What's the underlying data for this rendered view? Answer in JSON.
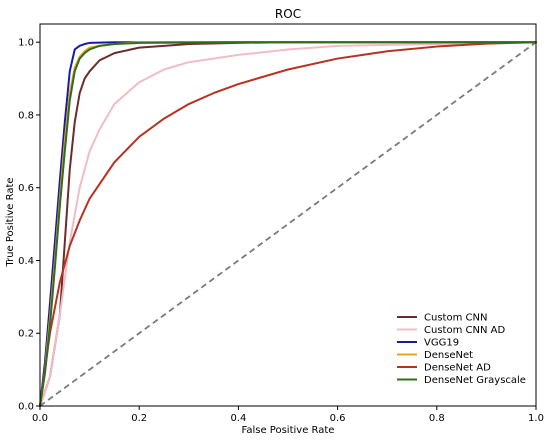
{
  "chart_data": {
    "type": "line",
    "title": "ROC",
    "xlabel": "False Positive Rate",
    "ylabel": "True Positive Rate",
    "xlim": [
      0,
      1
    ],
    "ylim": [
      0,
      1.05
    ],
    "xticks": [
      0.0,
      0.2,
      0.4,
      0.6,
      0.8,
      1.0
    ],
    "xtick_labels": [
      "0.0",
      "0.2",
      "0.4",
      "0.6",
      "0.8",
      "1.0"
    ],
    "yticks": [
      0.0,
      0.2,
      0.4,
      0.6,
      0.8,
      1.0
    ],
    "ytick_labels": [
      "0.0",
      "0.2",
      "0.4",
      "0.6",
      "0.8",
      "1.0"
    ],
    "grid": false,
    "legend_position": "lower-right",
    "series": [
      {
        "name": "Custom CNN",
        "color": "#6b2c2c",
        "x": [
          0,
          0.02,
          0.04,
          0.05,
          0.06,
          0.07,
          0.08,
          0.09,
          0.1,
          0.12,
          0.15,
          0.2,
          0.25,
          0.3,
          0.4,
          0.5,
          0.7,
          1.0
        ],
        "y": [
          0,
          0.08,
          0.25,
          0.45,
          0.65,
          0.78,
          0.86,
          0.9,
          0.92,
          0.95,
          0.97,
          0.985,
          0.99,
          0.995,
          0.998,
          1.0,
          1.0,
          1.0
        ]
      },
      {
        "name": "Custom CNN AD",
        "color": "#f2bcc4",
        "x": [
          0,
          0.02,
          0.04,
          0.06,
          0.08,
          0.1,
          0.12,
          0.15,
          0.2,
          0.25,
          0.3,
          0.4,
          0.5,
          0.6,
          0.8,
          1.0
        ],
        "y": [
          0,
          0.08,
          0.25,
          0.45,
          0.6,
          0.7,
          0.76,
          0.83,
          0.89,
          0.925,
          0.945,
          0.965,
          0.98,
          0.99,
          0.995,
          1.0
        ]
      },
      {
        "name": "VGG19",
        "color": "#1a1aa8",
        "x": [
          0,
          0.01,
          0.02,
          0.03,
          0.04,
          0.05,
          0.06,
          0.07,
          0.08,
          0.09,
          0.1,
          0.15,
          0.2,
          0.4,
          1.0
        ],
        "y": [
          0,
          0.12,
          0.28,
          0.45,
          0.62,
          0.78,
          0.92,
          0.98,
          0.99,
          0.995,
          0.998,
          1.0,
          1.0,
          1.0,
          1.0
        ]
      },
      {
        "name": "DenseNet",
        "color": "#f0a020",
        "x": [
          0,
          0.01,
          0.02,
          0.03,
          0.04,
          0.05,
          0.06,
          0.07,
          0.08,
          0.09,
          0.1,
          0.12,
          0.15,
          0.2,
          0.4,
          1.0
        ],
        "y": [
          0,
          0.1,
          0.24,
          0.4,
          0.57,
          0.73,
          0.86,
          0.93,
          0.96,
          0.975,
          0.985,
          0.99,
          0.995,
          1.0,
          1.0,
          1.0
        ]
      },
      {
        "name": "DenseNet AD",
        "color": "#b83222",
        "x": [
          0,
          0.02,
          0.04,
          0.06,
          0.08,
          0.1,
          0.15,
          0.2,
          0.25,
          0.3,
          0.35,
          0.4,
          0.5,
          0.6,
          0.7,
          0.8,
          0.9,
          1.0
        ],
        "y": [
          0,
          0.2,
          0.34,
          0.44,
          0.51,
          0.57,
          0.67,
          0.74,
          0.79,
          0.83,
          0.86,
          0.885,
          0.925,
          0.955,
          0.975,
          0.988,
          0.996,
          1.0
        ]
      },
      {
        "name": "DenseNet Grayscale",
        "color": "#2d6e20",
        "x": [
          0,
          0.01,
          0.02,
          0.03,
          0.04,
          0.05,
          0.06,
          0.07,
          0.08,
          0.09,
          0.1,
          0.12,
          0.15,
          0.2,
          0.4,
          1.0
        ],
        "y": [
          0,
          0.09,
          0.22,
          0.38,
          0.55,
          0.7,
          0.84,
          0.92,
          0.955,
          0.97,
          0.98,
          0.99,
          0.995,
          0.998,
          1.0,
          1.0
        ]
      }
    ],
    "reference_line": {
      "color": "#7a7a7a",
      "style": "dashed",
      "x": [
        0,
        1
      ],
      "y": [
        0,
        1
      ]
    }
  }
}
